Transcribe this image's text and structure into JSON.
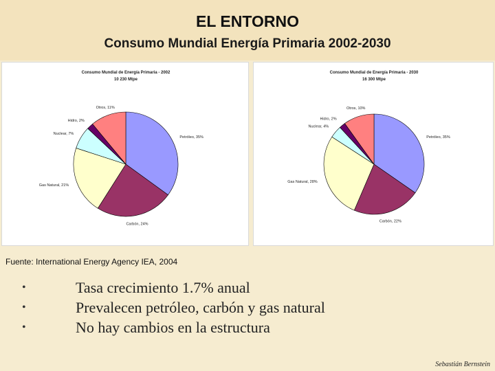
{
  "slide": {
    "title": "EL ENTORNO",
    "subtitle": "Consumo Mundial Energía Primaria 2002-2030",
    "source": "Fuente: International Energy Agency IEA, 2004",
    "bullet_symbol": "•",
    "bullets": [
      "Tasa crecimiento 1.7% anual",
      "Prevalecen petróleo, carbón y gas natural",
      "No hay cambios en la estructura"
    ],
    "signature": "Sebastián Bernstein",
    "colors": {
      "background": "#f6ecd0",
      "petroleo": "#9999ff",
      "carbon": "#993366",
      "gas_natural": "#ffffcc",
      "nuclear": "#ccffff",
      "hidro": "#660066",
      "otros": "#ff8080"
    }
  },
  "chart_data": [
    {
      "type": "pie",
      "title": "Consumo Mundial de Energía Primaria - 2002",
      "subtitle": "10 230 Mtpe",
      "categories": [
        "Petróleo",
        "Carbón",
        "Gas Natural",
        "Nuclear",
        "Hidro",
        "Otros"
      ],
      "values": [
        35,
        24,
        21,
        7,
        2,
        11
      ],
      "labels": [
        "Petróleo, 35%",
        "Carbón, 24%",
        "Gas Natural, 21%",
        "Nuclear, 7%",
        "Hidro, 2%",
        "Otros, 11%"
      ]
    },
    {
      "type": "pie",
      "title": "Consumo Mundial  de Energía Primaria - 2030",
      "subtitle": "16 300 Mtpe",
      "categories": [
        "Petróleo",
        "Carbón",
        "Gas Natural",
        "Nuclear",
        "Hidro",
        "Otros"
      ],
      "values": [
        35,
        22,
        28,
        4,
        2,
        10
      ],
      "labels": [
        "Petróleo, 35%",
        "Carbón, 22%",
        "Gas Natural, 28%",
        "Nuclear, 4%",
        "Hidro, 2%",
        "Otros, 10%"
      ]
    }
  ]
}
